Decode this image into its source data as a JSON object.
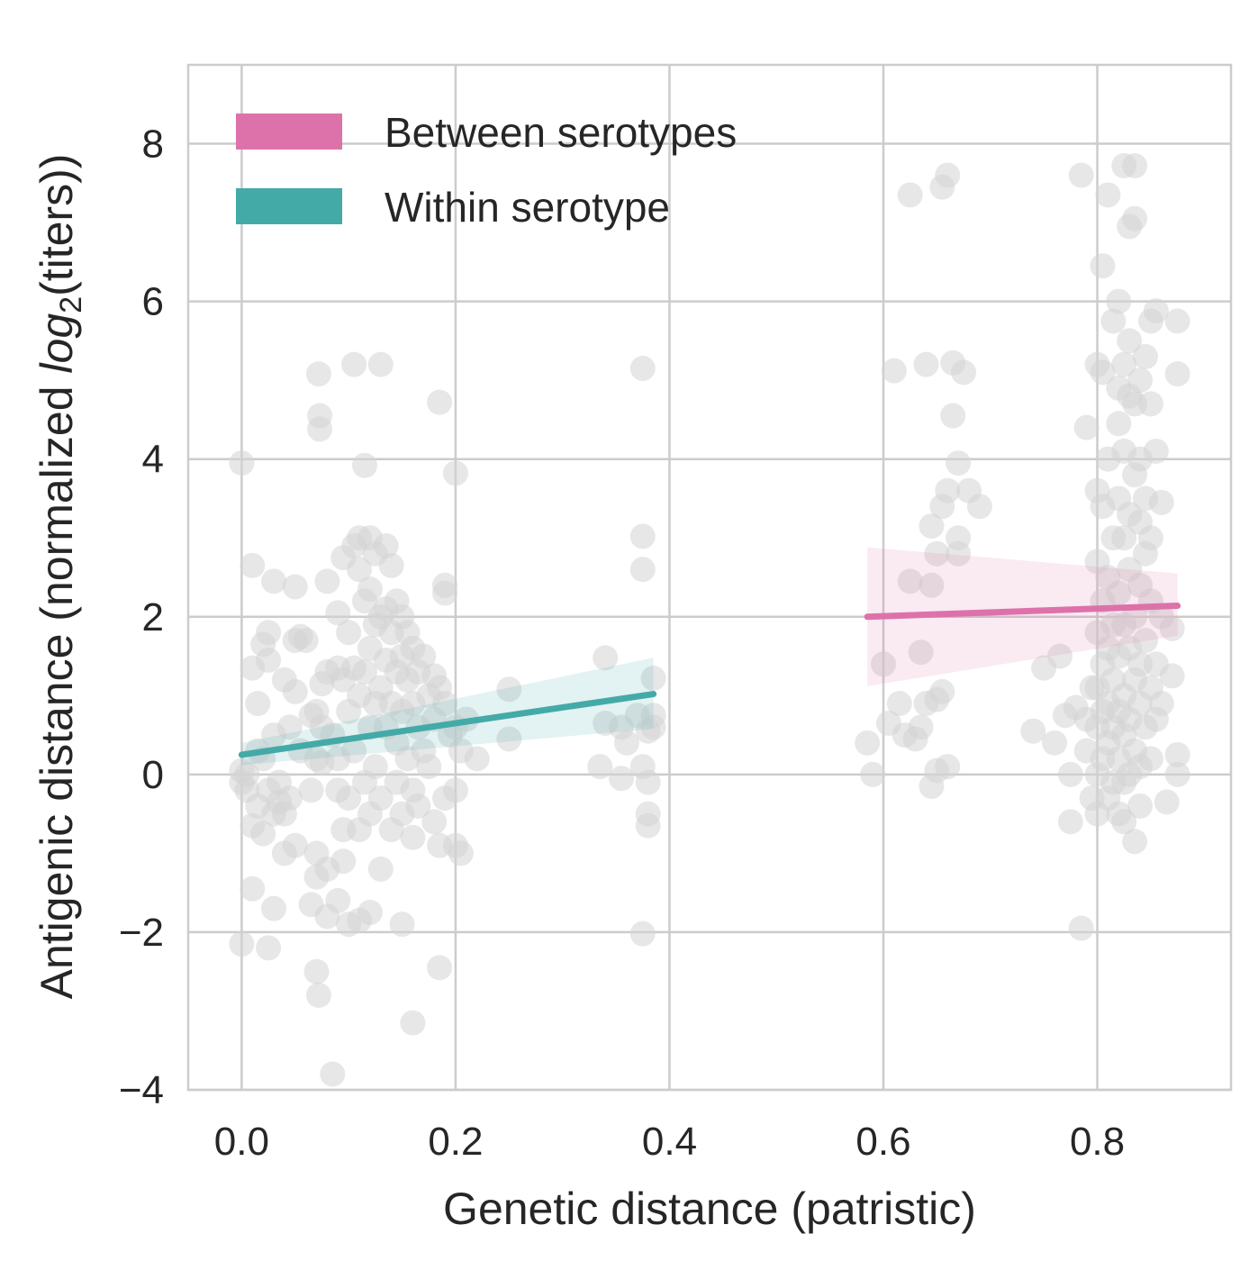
{
  "chart_data": {
    "type": "scatter",
    "xlabel": "Genetic distance (patristic)",
    "ylabel_parts": {
      "pre": "Antigenic distance (normalized ",
      "log": "log",
      "sub": "2",
      "post": "(titers))"
    },
    "xlim": [
      -0.05,
      0.925
    ],
    "ylim": [
      -4,
      9
    ],
    "x_ticks": [
      0.0,
      0.2,
      0.4,
      0.6,
      0.8
    ],
    "x_tick_labels": [
      "0.0",
      "0.2",
      "0.4",
      "0.6",
      "0.8"
    ],
    "y_ticks": [
      -4,
      -2,
      0,
      2,
      4,
      6,
      8
    ],
    "y_tick_labels": [
      "−4",
      "−2",
      "0",
      "2",
      "4",
      "6",
      "8"
    ],
    "grid": true,
    "legend_position": "top-left",
    "point_color": "#d3d3d3",
    "series": [
      {
        "name": "Between serotypes",
        "color": "#dd72aa",
        "fit_x": [
          0.585,
          0.875
        ],
        "fit_y": [
          2.0,
          2.14
        ],
        "ci_lower": [
          1.12,
          1.76
        ],
        "ci_upper": [
          2.88,
          2.55
        ]
      },
      {
        "name": "Within serotype",
        "color": "#44aaa8",
        "fit_x": [
          0.0,
          0.385
        ],
        "fit_y": [
          0.25,
          1.02
        ],
        "ci_lower": [
          0.12,
          0.58
        ],
        "ci_upper": [
          0.4,
          1.48
        ]
      }
    ],
    "points": [
      [
        0.0,
        3.95
      ],
      [
        0.0,
        0.05
      ],
      [
        0.0,
        -2.15
      ],
      [
        0.0,
        -0.1
      ],
      [
        0.005,
        0.0
      ],
      [
        0.005,
        -0.2
      ],
      [
        0.01,
        2.65
      ],
      [
        0.01,
        1.35
      ],
      [
        0.01,
        -0.65
      ],
      [
        0.01,
        -1.45
      ],
      [
        0.015,
        0.9
      ],
      [
        0.015,
        0.3
      ],
      [
        0.015,
        -0.4
      ],
      [
        0.02,
        1.65
      ],
      [
        0.02,
        0.2
      ],
      [
        0.02,
        -0.75
      ],
      [
        0.025,
        1.8
      ],
      [
        0.025,
        1.45
      ],
      [
        0.025,
        -0.2
      ],
      [
        0.025,
        -2.2
      ],
      [
        0.03,
        2.45
      ],
      [
        0.03,
        0.5
      ],
      [
        0.03,
        -0.5
      ],
      [
        0.03,
        -1.7
      ],
      [
        0.035,
        -0.1
      ],
      [
        0.035,
        -0.35
      ],
      [
        0.04,
        1.2
      ],
      [
        0.04,
        -0.5
      ],
      [
        0.04,
        -1.0
      ],
      [
        0.045,
        0.6
      ],
      [
        0.045,
        -0.3
      ],
      [
        0.05,
        2.38
      ],
      [
        0.05,
        1.7
      ],
      [
        0.05,
        1.05
      ],
      [
        0.05,
        -0.9
      ],
      [
        0.055,
        1.75
      ],
      [
        0.055,
        0.3
      ],
      [
        0.06,
        1.7
      ],
      [
        0.065,
        0.75
      ],
      [
        0.065,
        -0.2
      ],
      [
        0.065,
        -1.65
      ],
      [
        0.07,
        0.8
      ],
      [
        0.07,
        0.2
      ],
      [
        0.07,
        -1.0
      ],
      [
        0.07,
        -1.3
      ],
      [
        0.07,
        -2.5
      ],
      [
        0.072,
        -2.8
      ],
      [
        0.072,
        5.08
      ],
      [
        0.073,
        4.55
      ],
      [
        0.073,
        4.38
      ],
      [
        0.075,
        1.15
      ],
      [
        0.075,
        0.6
      ],
      [
        0.075,
        0.15
      ],
      [
        0.08,
        2.45
      ],
      [
        0.08,
        1.3
      ],
      [
        0.08,
        -1.2
      ],
      [
        0.08,
        -1.8
      ],
      [
        0.085,
        0.5
      ],
      [
        0.085,
        -3.8
      ],
      [
        0.09,
        2.05
      ],
      [
        0.09,
        1.35
      ],
      [
        0.09,
        0.2
      ],
      [
        0.09,
        -0.2
      ],
      [
        0.09,
        -1.6
      ],
      [
        0.095,
        2.75
      ],
      [
        0.095,
        1.2
      ],
      [
        0.095,
        -0.7
      ],
      [
        0.095,
        -1.1
      ],
      [
        0.1,
        1.8
      ],
      [
        0.1,
        0.8
      ],
      [
        0.1,
        -0.3
      ],
      [
        0.1,
        -1.9
      ],
      [
        0.105,
        5.2
      ],
      [
        0.105,
        2.9
      ],
      [
        0.105,
        1.35
      ],
      [
        0.105,
        0.3
      ],
      [
        0.11,
        3.0
      ],
      [
        0.11,
        2.6
      ],
      [
        0.11,
        1.0
      ],
      [
        0.11,
        -0.7
      ],
      [
        0.11,
        -1.85
      ],
      [
        0.115,
        3.92
      ],
      [
        0.115,
        2.2
      ],
      [
        0.115,
        1.3
      ],
      [
        0.115,
        -0.1
      ],
      [
        0.12,
        3.0
      ],
      [
        0.12,
        2.35
      ],
      [
        0.12,
        1.6
      ],
      [
        0.12,
        0.6
      ],
      [
        0.12,
        -0.5
      ],
      [
        0.12,
        -1.75
      ],
      [
        0.125,
        2.8
      ],
      [
        0.125,
        1.9
      ],
      [
        0.125,
        0.9
      ],
      [
        0.125,
        0.1
      ],
      [
        0.13,
        5.2
      ],
      [
        0.13,
        2.0
      ],
      [
        0.13,
        1.1
      ],
      [
        0.13,
        -0.3
      ],
      [
        0.13,
        -1.2
      ],
      [
        0.135,
        2.9
      ],
      [
        0.135,
        2.1
      ],
      [
        0.135,
        1.45
      ],
      [
        0.135,
        0.6
      ],
      [
        0.14,
        2.65
      ],
      [
        0.14,
        1.8
      ],
      [
        0.14,
        0.9
      ],
      [
        0.14,
        -0.7
      ],
      [
        0.145,
        2.2
      ],
      [
        0.145,
        1.3
      ],
      [
        0.145,
        0.4
      ],
      [
        0.145,
        -0.1
      ],
      [
        0.15,
        2.0
      ],
      [
        0.15,
        1.5
      ],
      [
        0.15,
        0.8
      ],
      [
        0.15,
        -0.5
      ],
      [
        0.15,
        -1.9
      ],
      [
        0.155,
        1.8
      ],
      [
        0.155,
        1.2
      ],
      [
        0.155,
        0.2
      ],
      [
        0.16,
        1.6
      ],
      [
        0.16,
        0.9
      ],
      [
        0.16,
        -0.2
      ],
      [
        0.16,
        -0.8
      ],
      [
        0.16,
        -3.15
      ],
      [
        0.165,
        1.3
      ],
      [
        0.165,
        0.6
      ],
      [
        0.165,
        -0.4
      ],
      [
        0.17,
        1.5
      ],
      [
        0.17,
        0.3
      ],
      [
        0.175,
        1.0
      ],
      [
        0.175,
        0.1
      ],
      [
        0.18,
        1.25
      ],
      [
        0.18,
        0.7
      ],
      [
        0.18,
        -0.6
      ],
      [
        0.185,
        4.72
      ],
      [
        0.185,
        1.1
      ],
      [
        0.185,
        -0.9
      ],
      [
        0.185,
        -2.45
      ],
      [
        0.19,
        2.3
      ],
      [
        0.19,
        2.4
      ],
      [
        0.19,
        0.9
      ],
      [
        0.19,
        -0.3
      ],
      [
        0.195,
        0.5
      ],
      [
        0.2,
        3.82
      ],
      [
        0.2,
        0.6
      ],
      [
        0.2,
        -0.2
      ],
      [
        0.2,
        -0.9
      ],
      [
        0.205,
        0.3
      ],
      [
        0.205,
        -1.0
      ],
      [
        0.21,
        0.7
      ],
      [
        0.22,
        0.2
      ],
      [
        0.25,
        0.45
      ],
      [
        0.25,
        1.08
      ],
      [
        0.335,
        0.1
      ],
      [
        0.34,
        0.65
      ],
      [
        0.34,
        1.48
      ],
      [
        0.355,
        0.6
      ],
      [
        0.355,
        -0.05
      ],
      [
        0.36,
        0.4
      ],
      [
        0.37,
        0.75
      ],
      [
        0.375,
        5.15
      ],
      [
        0.375,
        3.02
      ],
      [
        0.375,
        2.6
      ],
      [
        0.375,
        0.1
      ],
      [
        0.375,
        -2.02
      ],
      [
        0.38,
        0.55
      ],
      [
        0.38,
        -0.5
      ],
      [
        0.38,
        -0.1
      ],
      [
        0.38,
        -0.65
      ],
      [
        0.385,
        0.75
      ],
      [
        0.385,
        1.22
      ],
      [
        0.385,
        0.6
      ],
      [
        0.585,
        0.4
      ],
      [
        0.59,
        0.0
      ],
      [
        0.6,
        1.4
      ],
      [
        0.605,
        0.65
      ],
      [
        0.61,
        5.12
      ],
      [
        0.615,
        0.9
      ],
      [
        0.62,
        0.5
      ],
      [
        0.625,
        2.45
      ],
      [
        0.625,
        7.35
      ],
      [
        0.63,
        0.45
      ],
      [
        0.635,
        1.55
      ],
      [
        0.635,
        0.6
      ],
      [
        0.64,
        5.2
      ],
      [
        0.64,
        0.9
      ],
      [
        0.645,
        2.4
      ],
      [
        0.645,
        3.15
      ],
      [
        0.645,
        -0.15
      ],
      [
        0.65,
        2.8
      ],
      [
        0.65,
        0.95
      ],
      [
        0.65,
        0.05
      ],
      [
        0.655,
        3.4
      ],
      [
        0.655,
        7.45
      ],
      [
        0.655,
        1.05
      ],
      [
        0.66,
        3.6
      ],
      [
        0.66,
        7.6
      ],
      [
        0.66,
        0.1
      ],
      [
        0.665,
        5.22
      ],
      [
        0.665,
        4.55
      ],
      [
        0.67,
        3.95
      ],
      [
        0.67,
        2.8
      ],
      [
        0.67,
        3.0
      ],
      [
        0.675,
        5.1
      ],
      [
        0.68,
        3.6
      ],
      [
        0.69,
        3.4
      ],
      [
        0.74,
        0.55
      ],
      [
        0.75,
        1.35
      ],
      [
        0.76,
        0.4
      ],
      [
        0.765,
        1.5
      ],
      [
        0.77,
        0.75
      ],
      [
        0.775,
        0.0
      ],
      [
        0.775,
        -0.6
      ],
      [
        0.78,
        0.85
      ],
      [
        0.785,
        7.6
      ],
      [
        0.785,
        -1.95
      ],
      [
        0.79,
        4.4
      ],
      [
        0.79,
        0.7
      ],
      [
        0.79,
        0.3
      ],
      [
        0.795,
        1.1
      ],
      [
        0.795,
        -0.3
      ],
      [
        0.8,
        5.2
      ],
      [
        0.8,
        3.6
      ],
      [
        0.8,
        2.7
      ],
      [
        0.8,
        1.8
      ],
      [
        0.8,
        1.1
      ],
      [
        0.8,
        0.6
      ],
      [
        0.8,
        0.0
      ],
      [
        0.8,
        -0.5
      ],
      [
        0.805,
        6.45
      ],
      [
        0.805,
        5.1
      ],
      [
        0.805,
        3.4
      ],
      [
        0.805,
        2.2
      ],
      [
        0.805,
        1.4
      ],
      [
        0.805,
        0.8
      ],
      [
        0.805,
        0.2
      ],
      [
        0.81,
        7.35
      ],
      [
        0.81,
        4.0
      ],
      [
        0.81,
        2.5
      ],
      [
        0.81,
        1.6
      ],
      [
        0.81,
        0.9
      ],
      [
        0.81,
        0.4
      ],
      [
        0.81,
        -0.3
      ],
      [
        0.815,
        5.75
      ],
      [
        0.815,
        3.0
      ],
      [
        0.815,
        1.9
      ],
      [
        0.815,
        1.2
      ],
      [
        0.815,
        0.6
      ],
      [
        0.815,
        -0.1
      ],
      [
        0.82,
        6.0
      ],
      [
        0.82,
        4.9
      ],
      [
        0.82,
        4.45
      ],
      [
        0.82,
        3.5
      ],
      [
        0.82,
        2.3
      ],
      [
        0.82,
        1.5
      ],
      [
        0.82,
        0.8
      ],
      [
        0.82,
        0.2
      ],
      [
        0.82,
        -0.5
      ],
      [
        0.825,
        7.72
      ],
      [
        0.825,
        5.2
      ],
      [
        0.825,
        4.1
      ],
      [
        0.825,
        3.0
      ],
      [
        0.825,
        1.9
      ],
      [
        0.825,
        1.0
      ],
      [
        0.825,
        0.5
      ],
      [
        0.825,
        -0.1
      ],
      [
        0.825,
        -0.6
      ],
      [
        0.83,
        6.95
      ],
      [
        0.83,
        5.5
      ],
      [
        0.83,
        4.8
      ],
      [
        0.83,
        3.3
      ],
      [
        0.83,
        2.6
      ],
      [
        0.83,
        1.6
      ],
      [
        0.83,
        0.7
      ],
      [
        0.83,
        0.0
      ],
      [
        0.835,
        7.05
      ],
      [
        0.835,
        7.72
      ],
      [
        0.835,
        4.7
      ],
      [
        0.835,
        3.8
      ],
      [
        0.835,
        2.0
      ],
      [
        0.835,
        1.2
      ],
      [
        0.835,
        0.3
      ],
      [
        0.835,
        -0.85
      ],
      [
        0.84,
        5.0
      ],
      [
        0.84,
        4.0
      ],
      [
        0.84,
        3.2
      ],
      [
        0.84,
        2.4
      ],
      [
        0.84,
        1.4
      ],
      [
        0.84,
        0.9
      ],
      [
        0.84,
        0.1
      ],
      [
        0.84,
        -0.4
      ],
      [
        0.845,
        5.3
      ],
      [
        0.845,
        3.5
      ],
      [
        0.845,
        2.8
      ],
      [
        0.845,
        1.7
      ],
      [
        0.845,
        0.6
      ],
      [
        0.85,
        5.75
      ],
      [
        0.85,
        4.7
      ],
      [
        0.85,
        3.0
      ],
      [
        0.85,
        2.2
      ],
      [
        0.85,
        1.1
      ],
      [
        0.85,
        0.2
      ],
      [
        0.855,
        5.88
      ],
      [
        0.855,
        4.1
      ],
      [
        0.855,
        1.4
      ],
      [
        0.855,
        0.7
      ],
      [
        0.86,
        3.45
      ],
      [
        0.86,
        2.0
      ],
      [
        0.86,
        0.9
      ],
      [
        0.865,
        -0.35
      ],
      [
        0.87,
        1.85
      ],
      [
        0.87,
        1.25
      ],
      [
        0.875,
        5.75
      ],
      [
        0.875,
        5.08
      ],
      [
        0.875,
        0.25
      ],
      [
        0.875,
        0.0
      ]
    ]
  }
}
